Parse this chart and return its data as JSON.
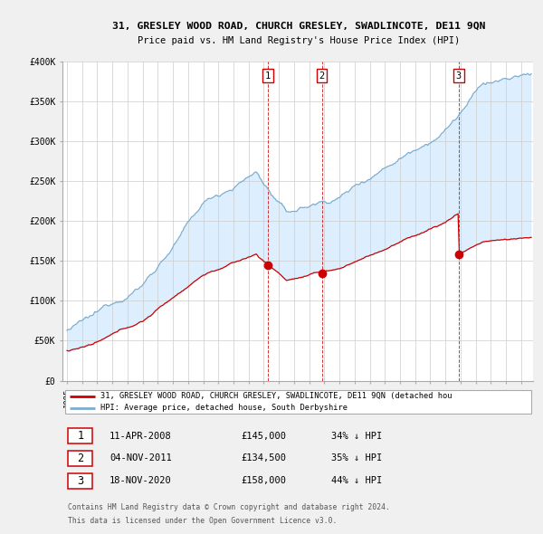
{
  "title1": "31, GRESLEY WOOD ROAD, CHURCH GRESLEY, SWADLINCOTE, DE11 9QN",
  "title2": "Price paid vs. HM Land Registry's House Price Index (HPI)",
  "ylim": [
    0,
    400000
  ],
  "yticks": [
    0,
    50000,
    100000,
    150000,
    200000,
    250000,
    300000,
    350000,
    400000
  ],
  "ytick_labels": [
    "£0",
    "£50K",
    "£100K",
    "£150K",
    "£200K",
    "£250K",
    "£300K",
    "£350K",
    "£400K"
  ],
  "xlim_start": 1994.7,
  "xlim_end": 2025.8,
  "sales": [
    {
      "num": 1,
      "year": 2008.28,
      "price": 145000,
      "label": "11-APR-2008",
      "amount": "£145,000",
      "pct": "34% ↓ HPI"
    },
    {
      "num": 2,
      "year": 2011.84,
      "price": 134500,
      "label": "04-NOV-2011",
      "amount": "£134,500",
      "pct": "35% ↓ HPI"
    },
    {
      "num": 3,
      "year": 2020.88,
      "price": 158000,
      "label": "18-NOV-2020",
      "amount": "£158,000",
      "pct": "44% ↓ HPI"
    }
  ],
  "legend_red": "31, GRESLEY WOOD ROAD, CHURCH GRESLEY, SWADLINCOTE, DE11 9QN (detached hou",
  "legend_blue": "HPI: Average price, detached house, South Derbyshire",
  "footer1": "Contains HM Land Registry data © Crown copyright and database right 2024.",
  "footer2": "This data is licensed under the Open Government Licence v3.0.",
  "bg_color": "#f0f0f0",
  "plot_bg": "#ffffff",
  "red_color": "#cc0000",
  "blue_color": "#7aadcf",
  "shade_blue": "#ddeeff",
  "shade_red": "#ffdddd",
  "grid_color": "#cccccc"
}
